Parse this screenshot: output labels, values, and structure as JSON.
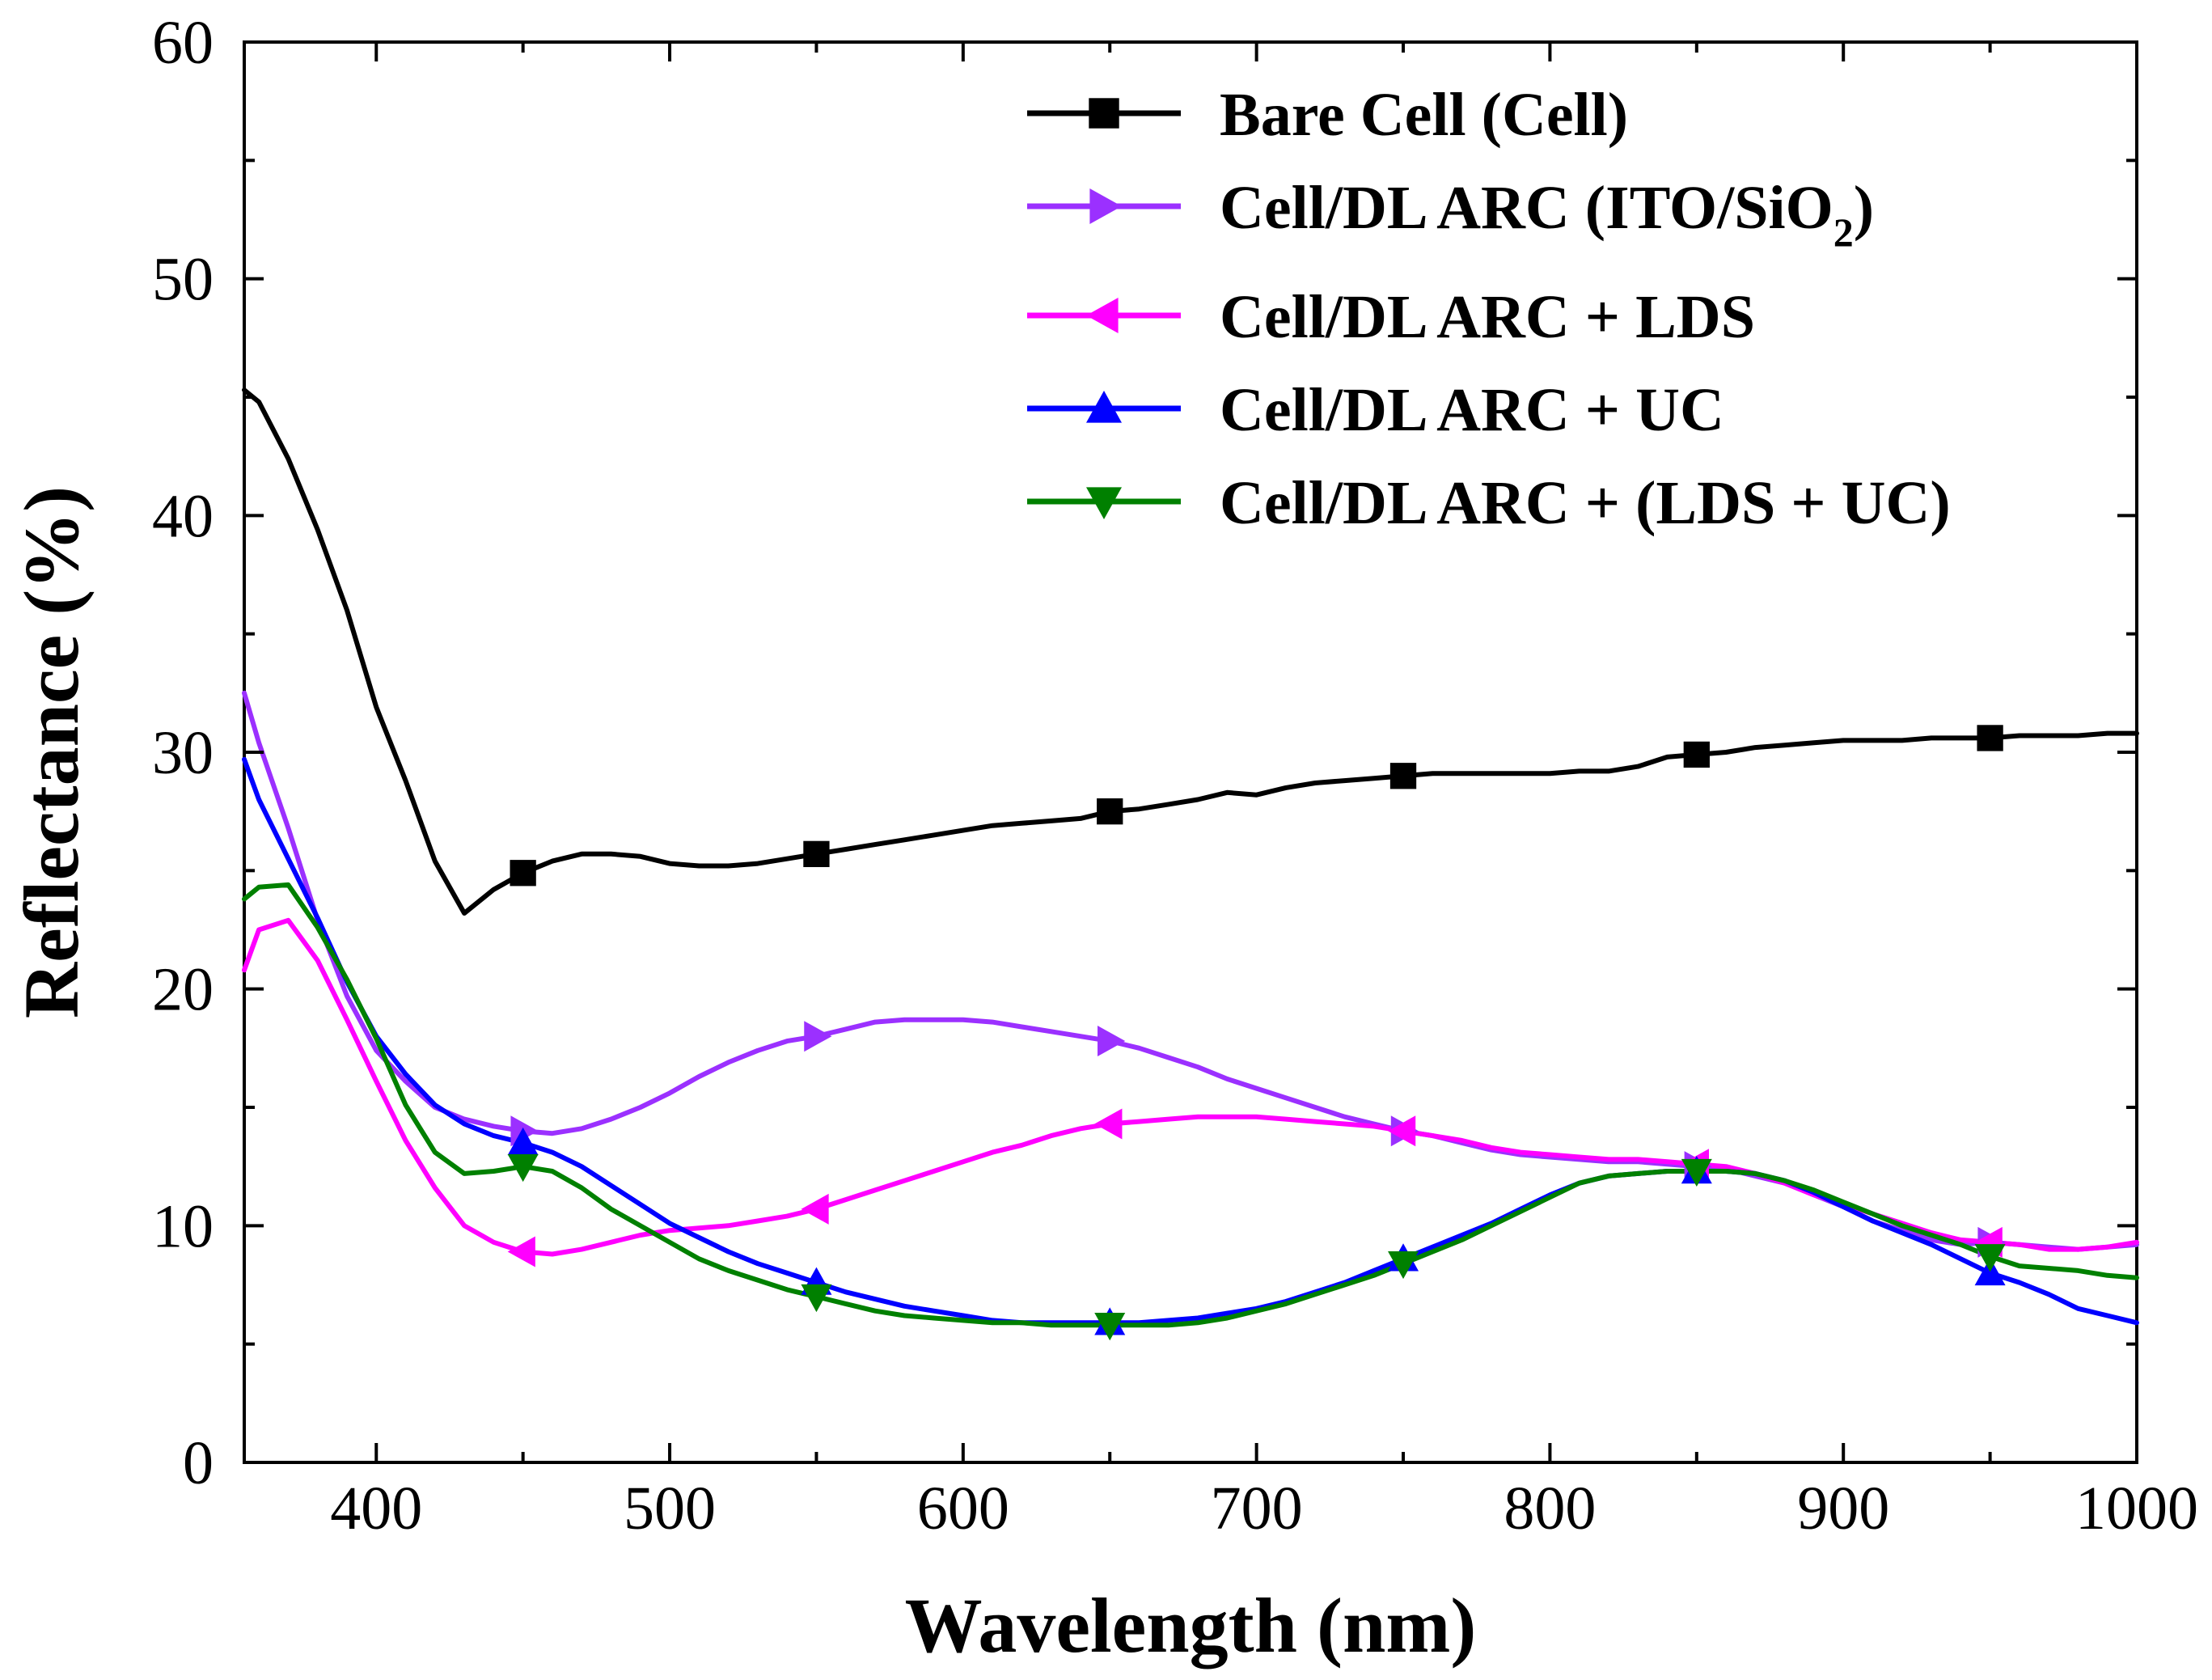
{
  "chart_data": {
    "type": "line",
    "title": "",
    "xlabel": "Wavelength (nm)",
    "ylabel": "Reflectance (%)",
    "xlim": [
      355,
      1000
    ],
    "ylim": [
      0,
      60
    ],
    "xticks": [
      400,
      500,
      600,
      700,
      800,
      900,
      1000
    ],
    "yticks": [
      0,
      10,
      20,
      30,
      40,
      50,
      60
    ],
    "legend_position": "top-right",
    "series": [
      {
        "name": "Bare Cell (Cell)",
        "color": "#000000",
        "marker": "square",
        "x": [
          355,
          360,
          370,
          380,
          390,
          400,
          410,
          420,
          430,
          440,
          450,
          460,
          470,
          480,
          490,
          500,
          510,
          520,
          530,
          540,
          550,
          560,
          570,
          580,
          590,
          600,
          610,
          620,
          630,
          640,
          650,
          660,
          670,
          680,
          690,
          700,
          710,
          720,
          730,
          740,
          750,
          760,
          770,
          780,
          790,
          800,
          810,
          820,
          830,
          840,
          850,
          860,
          870,
          880,
          890,
          900,
          910,
          920,
          930,
          940,
          950,
          960,
          970,
          980,
          990,
          1000
        ],
        "y": [
          45.3,
          44.8,
          42.4,
          39.4,
          36.0,
          31.9,
          28.8,
          25.4,
          23.2,
          24.2,
          24.9,
          25.4,
          25.7,
          25.7,
          25.6,
          25.3,
          25.2,
          25.2,
          25.3,
          25.5,
          25.7,
          25.9,
          26.1,
          26.3,
          26.5,
          26.7,
          26.9,
          27.0,
          27.1,
          27.2,
          27.5,
          27.6,
          27.8,
          28.0,
          28.3,
          28.2,
          28.5,
          28.7,
          28.8,
          28.9,
          29.0,
          29.1,
          29.1,
          29.1,
          29.1,
          29.1,
          29.2,
          29.2,
          29.4,
          29.8,
          29.9,
          30.0,
          30.2,
          30.3,
          30.4,
          30.5,
          30.5,
          30.5,
          30.6,
          30.6,
          30.6,
          30.7,
          30.7,
          30.7,
          30.8,
          30.8
        ],
        "marker_x": [
          450,
          550,
          650,
          750,
          850,
          950
        ]
      },
      {
        "name": "Cell/DL ARC (ITO/SiO2)",
        "color": "#9B30FF",
        "marker": "triangle-right",
        "x": [
          355,
          360,
          370,
          380,
          390,
          400,
          410,
          420,
          430,
          440,
          450,
          460,
          470,
          480,
          490,
          500,
          510,
          520,
          530,
          540,
          550,
          560,
          570,
          580,
          590,
          600,
          610,
          620,
          630,
          640,
          650,
          660,
          670,
          680,
          690,
          700,
          710,
          720,
          730,
          740,
          750,
          760,
          770,
          780,
          790,
          800,
          810,
          820,
          830,
          840,
          850,
          860,
          870,
          880,
          890,
          900,
          910,
          920,
          930,
          940,
          950,
          960,
          970,
          980,
          990,
          1000
        ],
        "y": [
          32.5,
          30.4,
          26.8,
          22.9,
          19.7,
          17.4,
          16.1,
          15.0,
          14.5,
          14.2,
          14.0,
          13.9,
          14.1,
          14.5,
          15.0,
          15.6,
          16.3,
          16.9,
          17.4,
          17.8,
          18.0,
          18.3,
          18.6,
          18.7,
          18.7,
          18.7,
          18.6,
          18.4,
          18.2,
          18.0,
          17.8,
          17.5,
          17.1,
          16.7,
          16.2,
          15.8,
          15.4,
          15.0,
          14.6,
          14.3,
          14.0,
          13.8,
          13.5,
          13.2,
          13.0,
          12.9,
          12.8,
          12.7,
          12.7,
          12.6,
          12.5,
          12.4,
          12.1,
          11.8,
          11.3,
          10.8,
          10.2,
          9.8,
          9.4,
          9.2,
          9.3,
          9.2,
          9.1,
          9.0,
          9.1,
          9.2
        ],
        "marker_x": [
          450,
          550,
          650,
          750,
          850,
          950
        ]
      },
      {
        "name": "Cell/DL ARC + LDS",
        "color": "#FF00FF",
        "marker": "triangle-left",
        "x": [
          355,
          360,
          370,
          380,
          390,
          400,
          410,
          420,
          430,
          440,
          450,
          460,
          470,
          480,
          490,
          500,
          510,
          520,
          530,
          540,
          550,
          560,
          570,
          580,
          590,
          600,
          610,
          620,
          630,
          640,
          650,
          660,
          670,
          680,
          690,
          700,
          710,
          720,
          730,
          740,
          750,
          760,
          770,
          780,
          790,
          800,
          810,
          820,
          830,
          840,
          850,
          860,
          870,
          880,
          890,
          900,
          910,
          920,
          930,
          940,
          950,
          960,
          970,
          980,
          990,
          1000
        ],
        "y": [
          20.8,
          22.5,
          22.9,
          21.2,
          18.7,
          16.1,
          13.6,
          11.6,
          10.0,
          9.3,
          8.9,
          8.8,
          9.0,
          9.3,
          9.6,
          9.8,
          9.9,
          10.0,
          10.2,
          10.4,
          10.7,
          11.1,
          11.5,
          11.9,
          12.3,
          12.7,
          13.1,
          13.4,
          13.8,
          14.1,
          14.3,
          14.4,
          14.5,
          14.6,
          14.6,
          14.6,
          14.5,
          14.4,
          14.3,
          14.2,
          14.0,
          13.8,
          13.6,
          13.3,
          13.1,
          13.0,
          12.9,
          12.8,
          12.8,
          12.7,
          12.6,
          12.5,
          12.2,
          11.8,
          11.3,
          10.9,
          10.5,
          10.1,
          9.7,
          9.4,
          9.3,
          9.2,
          9.0,
          9.0,
          9.1,
          9.3
        ],
        "marker_x": [
          450,
          550,
          650,
          750,
          850,
          950
        ]
      },
      {
        "name": "Cell/DL ARC + UC",
        "color": "#0000FF",
        "marker": "triangle-up",
        "x": [
          355,
          360,
          370,
          380,
          390,
          400,
          410,
          420,
          430,
          440,
          450,
          460,
          470,
          480,
          490,
          500,
          510,
          520,
          530,
          540,
          550,
          560,
          570,
          580,
          590,
          600,
          610,
          620,
          630,
          640,
          650,
          660,
          670,
          680,
          690,
          700,
          710,
          720,
          730,
          740,
          750,
          760,
          770,
          780,
          790,
          800,
          810,
          820,
          830,
          840,
          850,
          860,
          870,
          880,
          890,
          900,
          910,
          920,
          930,
          940,
          950,
          960,
          970,
          980,
          990,
          1000
        ],
        "y": [
          29.7,
          28.0,
          25.5,
          23.0,
          20.3,
          18.0,
          16.4,
          15.1,
          14.3,
          13.8,
          13.5,
          13.1,
          12.5,
          11.7,
          10.9,
          10.1,
          9.5,
          8.9,
          8.4,
          8.0,
          7.6,
          7.2,
          6.9,
          6.6,
          6.4,
          6.2,
          6.0,
          5.9,
          5.9,
          5.9,
          5.9,
          5.9,
          6.0,
          6.1,
          6.3,
          6.5,
          6.8,
          7.2,
          7.6,
          8.1,
          8.6,
          9.1,
          9.6,
          10.1,
          10.7,
          11.3,
          11.8,
          12.1,
          12.2,
          12.3,
          12.3,
          12.3,
          12.2,
          11.9,
          11.4,
          10.8,
          10.2,
          9.7,
          9.2,
          8.6,
          8.0,
          7.6,
          7.1,
          6.5,
          6.2,
          5.9
        ],
        "marker_x": [
          450,
          550,
          650,
          750,
          850,
          950
        ]
      },
      {
        "name": "Cell/DL ARC + (LDS + UC)",
        "color": "#008000",
        "marker": "triangle-down",
        "x": [
          355,
          360,
          370,
          380,
          390,
          400,
          410,
          420,
          430,
          440,
          450,
          460,
          470,
          480,
          490,
          500,
          510,
          520,
          530,
          540,
          550,
          560,
          570,
          580,
          590,
          600,
          610,
          620,
          630,
          640,
          650,
          660,
          670,
          680,
          690,
          700,
          710,
          720,
          730,
          740,
          750,
          760,
          770,
          780,
          790,
          800,
          810,
          820,
          830,
          840,
          850,
          860,
          870,
          880,
          890,
          900,
          910,
          920,
          930,
          940,
          950,
          960,
          970,
          980,
          990,
          1000
        ],
        "y": [
          23.8,
          24.3,
          24.4,
          22.6,
          20.4,
          17.9,
          15.1,
          13.1,
          12.2,
          12.3,
          12.5,
          12.3,
          11.6,
          10.7,
          10.0,
          9.3,
          8.6,
          8.1,
          7.7,
          7.3,
          7.0,
          6.7,
          6.4,
          6.2,
          6.1,
          6.0,
          5.9,
          5.9,
          5.8,
          5.8,
          5.8,
          5.8,
          5.8,
          5.9,
          6.1,
          6.4,
          6.7,
          7.1,
          7.5,
          7.9,
          8.4,
          8.9,
          9.4,
          10.0,
          10.6,
          11.2,
          11.8,
          12.1,
          12.2,
          12.3,
          12.3,
          12.3,
          12.2,
          11.9,
          11.5,
          11.0,
          10.5,
          10.0,
          9.6,
          9.2,
          8.7,
          8.3,
          8.2,
          8.1,
          7.9,
          7.8
        ],
        "marker_x": [
          450,
          550,
          650,
          750,
          850,
          950
        ]
      }
    ]
  }
}
